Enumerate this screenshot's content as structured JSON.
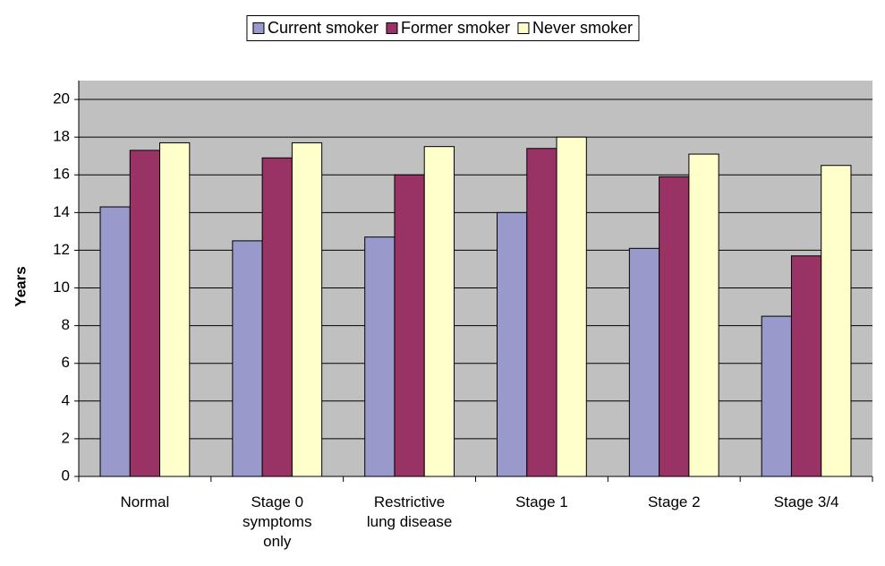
{
  "chart_data": {
    "type": "bar",
    "y_label": "Years",
    "categories": [
      "Normal",
      "Stage 0 symptoms only",
      "Restrictive lung disease",
      "Stage 1",
      "Stage 2",
      "Stage 3/4"
    ],
    "series": [
      {
        "name": "Current smoker",
        "color": "#9999cc",
        "values": [
          14.3,
          12.5,
          12.7,
          14.0,
          12.1,
          8.5
        ]
      },
      {
        "name": "Former smoker",
        "color": "#993366",
        "values": [
          17.3,
          16.9,
          16.0,
          17.4,
          15.9,
          11.7
        ]
      },
      {
        "name": "Never smoker",
        "color": "#ffffcc",
        "values": [
          17.7,
          17.7,
          17.5,
          18.0,
          17.1,
          16.5
        ]
      }
    ],
    "ylim": [
      0,
      21
    ],
    "yticks": [
      0,
      2,
      4,
      6,
      8,
      10,
      12,
      14,
      16,
      18,
      20
    ],
    "grid": true,
    "plot_background": "#c0c0c0"
  }
}
